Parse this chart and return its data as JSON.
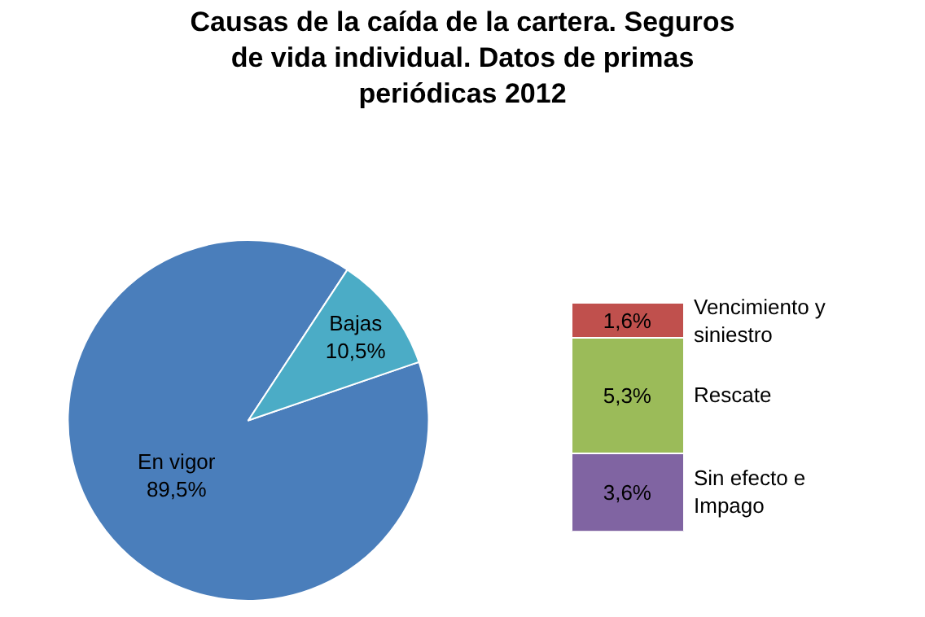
{
  "chart_data": [
    {
      "type": "pie",
      "title": "Causas de la caída de la cartera. Seguros de vida individual. Datos de primas periódicas 2012",
      "categories": [
        "En vigor",
        "Bajas"
      ],
      "values": [
        89.5,
        10.5
      ],
      "value_labels": [
        "89,5%",
        "10,5%"
      ],
      "colors": [
        "#4a7ebb",
        "#4bacc6"
      ],
      "legend": false
    },
    {
      "type": "bar",
      "stacked": true,
      "categories": [
        null
      ],
      "series": [
        {
          "name": "Sin efecto e Impago",
          "color": "#8064a2",
          "values": [
            3.6
          ],
          "value_labels": [
            "3,6%"
          ]
        },
        {
          "name": "Rescate",
          "color": "#9bbb59",
          "values": [
            5.3
          ],
          "value_labels": [
            "5,3%"
          ]
        },
        {
          "name": "Vencimiento y siniestro",
          "color": "#c0504d",
          "values": [
            1.6
          ],
          "value_labels": [
            "1,6%"
          ]
        }
      ],
      "legend": false,
      "tick_labels": false
    }
  ]
}
